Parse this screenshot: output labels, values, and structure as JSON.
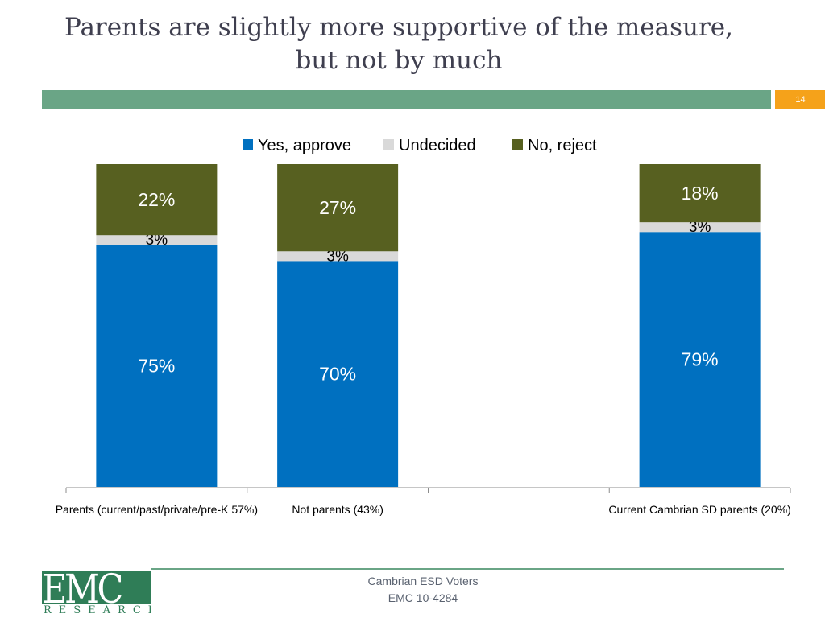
{
  "slide": {
    "title_lines": [
      "Parents are slightly more supportive of the measure,",
      "but not by much"
    ],
    "page_number": "14",
    "colors": {
      "band": "#6aa586",
      "page_badge": "#f5a21a",
      "title": "#3f3f4f"
    }
  },
  "footer": {
    "line1": "Cambrian ESD Voters",
    "line2": "EMC 10-4284",
    "logo_text": "EMC",
    "logo_sub": "RESEARCH"
  },
  "chart_data": {
    "type": "bar",
    "stacked": true,
    "categories": [
      "Parents (current/past/private/pre-K 57%)",
      "Not parents (43%)",
      "",
      "Current Cambrian SD parents (20%)"
    ],
    "series": [
      {
        "name": "Yes, approve",
        "color": "#0070c0",
        "values": [
          75,
          70,
          null,
          79
        ],
        "labels": [
          "75%",
          "70%",
          "",
          "79%"
        ]
      },
      {
        "name": "Undecided",
        "color": "#d9d9d9",
        "values": [
          3,
          3,
          null,
          3
        ],
        "labels": [
          "3%",
          "3%",
          "",
          "3%"
        ]
      },
      {
        "name": "No, reject",
        "color": "#576020",
        "values": [
          22,
          27,
          null,
          18
        ],
        "labels": [
          "22%",
          "27%",
          "",
          "18%"
        ]
      }
    ],
    "ylim": [
      0,
      100
    ],
    "grid": false,
    "legend_position": "top"
  }
}
